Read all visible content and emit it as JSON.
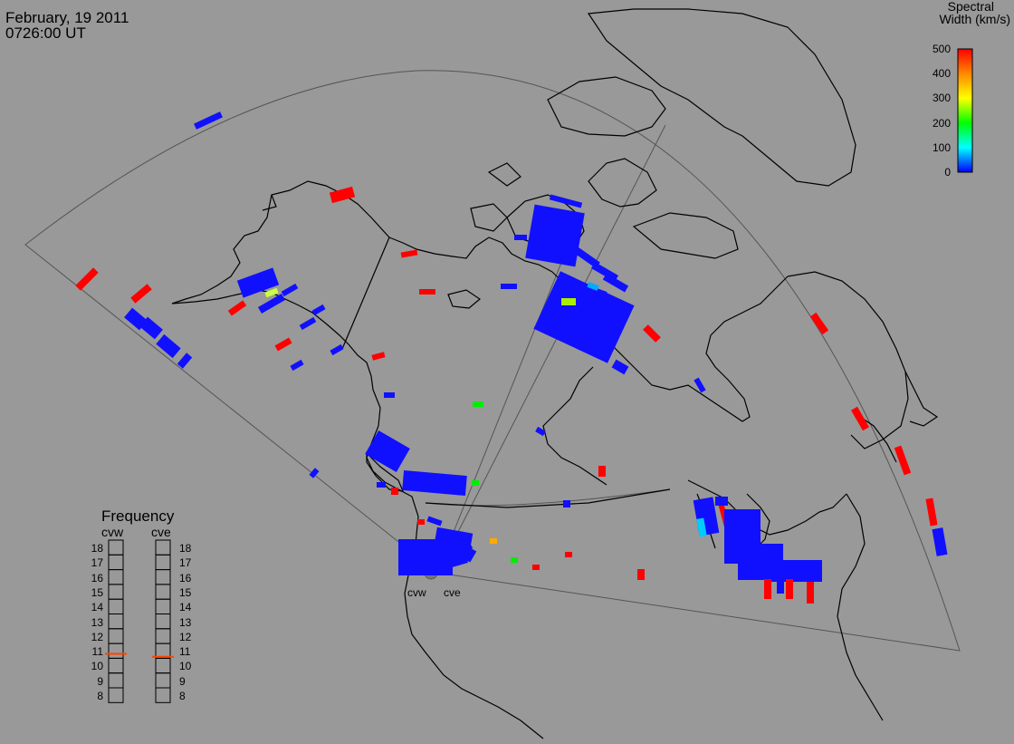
{
  "header": {
    "date": "February, 19 2011",
    "time": "0726:00 UT"
  },
  "colorbar": {
    "title_line1": "Spectral",
    "title_line2": "Width (km/s)",
    "ticks": [
      "500",
      "400",
      "300",
      "200",
      "100",
      "0"
    ],
    "range": [
      0,
      500
    ],
    "gradient_colors": [
      "#ff0000",
      "#ff8800",
      "#ffff00",
      "#00ff00",
      "#00ffff",
      "#0000ff"
    ]
  },
  "frequency_panel": {
    "title": "Frequency",
    "radars": [
      {
        "name": "cvw",
        "frequency_mhz": 10.8
      },
      {
        "name": "cve",
        "frequency_mhz": 10.6
      }
    ],
    "labels": [
      "18",
      "17",
      "16",
      "15",
      "14",
      "13",
      "12",
      "11",
      "10",
      "9",
      "8"
    ],
    "range": [
      8,
      18
    ]
  },
  "radar_sites": [
    {
      "name": "cvw"
    },
    {
      "name": "cve"
    }
  ],
  "colors": {
    "background": "#999999",
    "coastline": "#000000",
    "fov_line": "#555555",
    "low_width": "#1010ff",
    "high_width": "#ff0000",
    "mid_width": "#00ee00",
    "indicator": "#ff4400"
  }
}
